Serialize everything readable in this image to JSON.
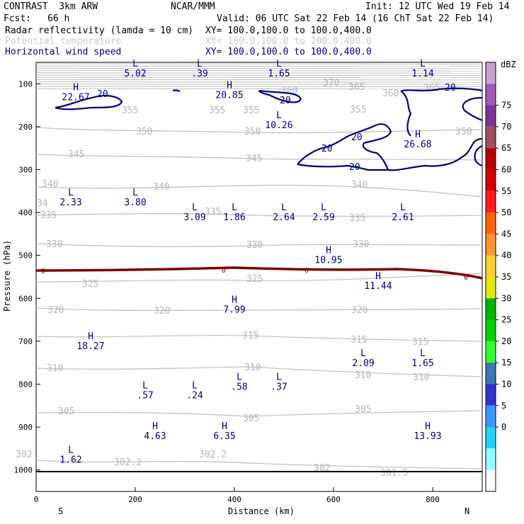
{
  "header": {
    "model": "CONTRAST  3km ARW",
    "center": "NCAR/MMM",
    "init": "Init: 12 UTC Wed 19 Feb 14",
    "fcst_label": "Fcst:",
    "fcst_value": "66 h",
    "valid": "Valid: 06 UTC Sat 22 Feb 14 (16 ChT Sat 22 Feb 14)"
  },
  "fields": [
    {
      "name": "Radar reflectivity (lamda = 10 cm)",
      "xy": "XY= 100.0,100.0 to 100.0,400.0",
      "style": "black"
    },
    {
      "name": "Potential temperature",
      "xy": "XY= 100.0,100.0 to 100.0,400.0",
      "style": "faint"
    },
    {
      "name": "Horizontal wind speed",
      "xy": "XY= 100.0,100.0 to 100.0,400.0",
      "style": "blue"
    }
  ],
  "colorbar": {
    "unit": "dBZ",
    "levels": [
      "75",
      "70",
      "65",
      "60",
      "55",
      "50",
      "45",
      "40",
      "35",
      "30",
      "25",
      "20",
      "15",
      "10",
      "5",
      "0"
    ],
    "colors": [
      "#c8a0d2",
      "#a05ab4",
      "#7e3296",
      "#a05064",
      "#b40000",
      "#d20000",
      "#ff1e1e",
      "#ff6400",
      "#ff9632",
      "#ffd232",
      "#e6e600",
      "#00b400",
      "#00d200",
      "#32ff32",
      "#3c78b4",
      "#3232d2",
      "#3c96ff",
      "#1ed2ff",
      "#96ffff",
      "#ffffff"
    ]
  },
  "chart_data": {
    "type": "cross-section",
    "xlabel": "Distance (km)",
    "ylabel": "Pressure (hPa)",
    "xlim": [
      0,
      900
    ],
    "ylim": [
      1050,
      50
    ],
    "x_ticks": [
      "0",
      "200",
      "400",
      "600",
      "800"
    ],
    "y_ticks": [
      "100",
      "200",
      "300",
      "400",
      "500",
      "600",
      "700",
      "800",
      "900",
      "1000"
    ],
    "left_end": "S",
    "right_end": "N",
    "theta_labels": [
      "370",
      "365",
      "360",
      "365",
      "360",
      "355",
      "355",
      "355",
      "355",
      "350",
      "350",
      "350",
      "345",
      "345",
      "340",
      "340",
      "340",
      "335",
      "335",
      "335",
      "330",
      "330",
      "330",
      "325",
      "325",
      "320",
      "320",
      "320",
      "315",
      "315",
      "315",
      "310",
      "310",
      "310",
      "310",
      "305",
      "305",
      "305",
      "302",
      "302.2",
      "302.2",
      "302",
      "301.5",
      "34"
    ],
    "wind_extrema": [
      {
        "type": "L",
        "value": "5.02",
        "x": 200,
        "p": 60
      },
      {
        "type": "L",
        "value": ".39",
        "x": 330,
        "p": 60
      },
      {
        "type": "L",
        "value": "1.65",
        "x": 490,
        "p": 60
      },
      {
        "type": "L",
        "value": "1.14",
        "x": 780,
        "p": 60
      },
      {
        "type": "H",
        "value": "22.67",
        "x": 80,
        "p": 115
      },
      {
        "type": "H",
        "value": "20.85",
        "x": 390,
        "p": 110
      },
      {
        "type": "L",
        "value": "10.26",
        "x": 490,
        "p": 180
      },
      {
        "type": "H",
        "value": "26.68",
        "x": 770,
        "p": 225
      },
      {
        "type": "L",
        "value": "2.33",
        "x": 70,
        "p": 360
      },
      {
        "type": "L",
        "value": "3.80",
        "x": 200,
        "p": 360
      },
      {
        "type": "L",
        "value": "3.09",
        "x": 320,
        "p": 395
      },
      {
        "type": "L",
        "value": "1.86",
        "x": 400,
        "p": 395
      },
      {
        "type": "L",
        "value": "2.64",
        "x": 500,
        "p": 395
      },
      {
        "type": "L",
        "value": "2.59",
        "x": 580,
        "p": 395
      },
      {
        "type": "L",
        "value": "2.61",
        "x": 740,
        "p": 395
      },
      {
        "type": "H",
        "value": "10.95",
        "x": 590,
        "p": 495
      },
      {
        "type": "H",
        "value": "11.44",
        "x": 690,
        "p": 555
      },
      {
        "type": "H",
        "value": "7.99",
        "x": 400,
        "p": 610
      },
      {
        "type": "H",
        "value": "18.27",
        "x": 110,
        "p": 695
      },
      {
        "type": "L",
        "value": "2.09",
        "x": 660,
        "p": 735
      },
      {
        "type": "L",
        "value": "1.65",
        "x": 780,
        "p": 735
      },
      {
        "type": "L",
        "value": ".58",
        "x": 410,
        "p": 790
      },
      {
        "type": "L",
        "value": ".37",
        "x": 490,
        "p": 790
      },
      {
        "type": "L",
        "value": ".57",
        "x": 220,
        "p": 810
      },
      {
        "type": "L",
        "value": ".24",
        "x": 320,
        "p": 810
      },
      {
        "type": "H",
        "value": "4.63",
        "x": 240,
        "p": 905
      },
      {
        "type": "H",
        "value": "6.35",
        "x": 380,
        "p": 905
      },
      {
        "type": "H",
        "value": "13.93",
        "x": 790,
        "p": 905
      },
      {
        "type": "L",
        "value": "1.62",
        "x": 70,
        "p": 960
      }
    ],
    "wind_contour_label": "20",
    "zero_line_label": "0",
    "surface_pressure": 1005
  }
}
